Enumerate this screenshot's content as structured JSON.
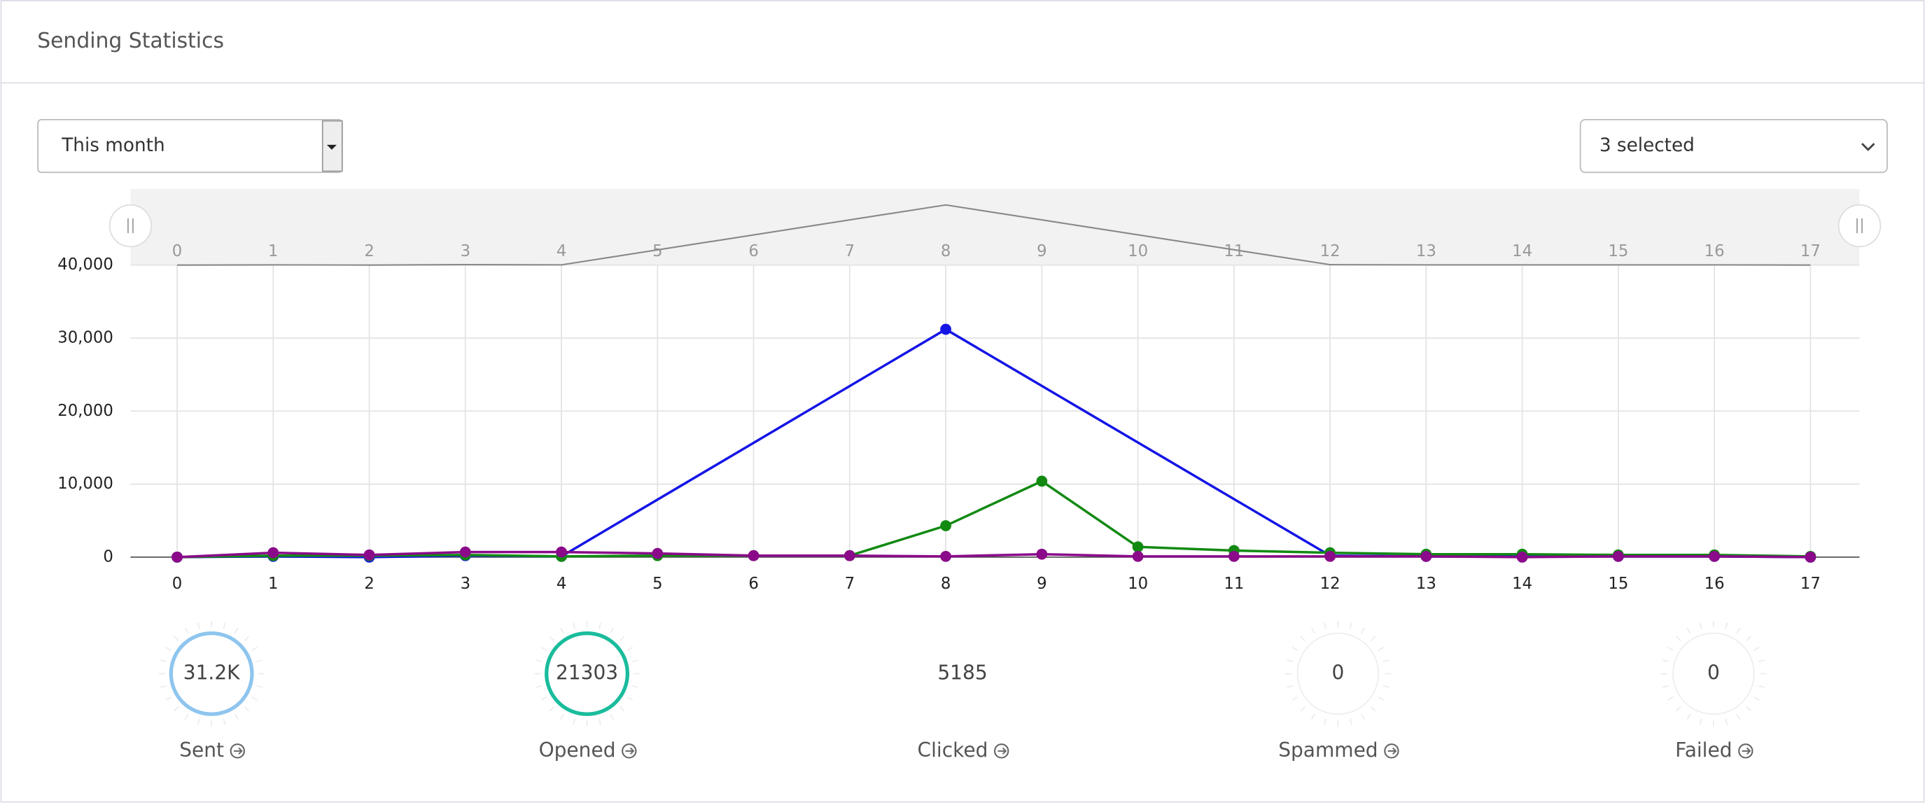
{
  "header": {
    "title": "Sending Statistics"
  },
  "controls": {
    "period": "This month",
    "series_filter": "3 selected"
  },
  "chart_data": {
    "type": "line",
    "x": [
      0,
      1,
      2,
      3,
      4,
      5,
      6,
      7,
      8,
      9,
      10,
      11,
      12,
      13,
      14,
      15,
      16,
      17
    ],
    "xlim": [
      0,
      17
    ],
    "xticks": [
      0,
      1,
      2,
      3,
      4,
      5,
      6,
      7,
      8,
      9,
      10,
      11,
      12,
      13,
      14,
      15,
      16,
      17
    ],
    "ylim": [
      0,
      40000
    ],
    "yticks": [
      0,
      {
        "value": 10000,
        "label": "10,000"
      },
      {
        "value": 20000,
        "label": "20,000"
      },
      {
        "value": 30000,
        "label": "30,000"
      },
      {
        "value": 40000,
        "label": "40,000"
      }
    ],
    "grid": true,
    "connect_nulls": true,
    "navigator": true,
    "series": [
      {
        "color": "#1515e6",
        "values": [
          0,
          100,
          0,
          200,
          100,
          null,
          null,
          null,
          31200,
          null,
          null,
          null,
          200,
          100,
          100,
          100,
          100,
          0
        ]
      },
      {
        "color": "#128a12",
        "values": [
          0,
          200,
          200,
          300,
          100,
          200,
          200,
          200,
          4300,
          10400,
          1400,
          900,
          600,
          400,
          400,
          300,
          300,
          100
        ]
      },
      {
        "color": "#8a0a8a",
        "values": [
          0,
          600,
          300,
          700,
          700,
          500,
          200,
          200,
          100,
          400,
          100,
          100,
          100,
          100,
          0,
          100,
          100,
          0
        ]
      }
    ]
  },
  "stats": [
    {
      "value": "31.2K",
      "label": "Sent"
    },
    {
      "value": "21303",
      "label": "Opened"
    },
    {
      "value": "5185",
      "label": "Clicked"
    },
    {
      "value": "0",
      "label": "Spammed"
    },
    {
      "value": "0",
      "label": "Failed"
    }
  ]
}
